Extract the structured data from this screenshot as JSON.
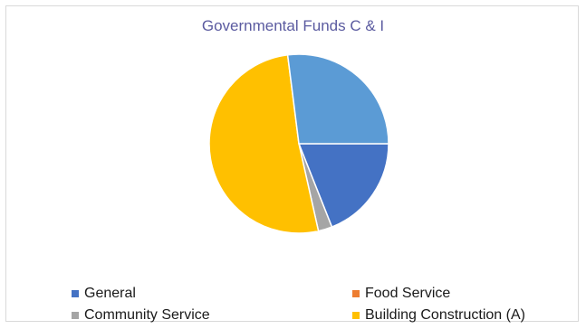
{
  "chart_data": {
    "type": "pie",
    "title": "Governmental Funds C & I",
    "categories": [
      "General",
      "Food Service",
      "Community Service",
      "Building Construction (A)",
      ""
    ],
    "values": [
      19,
      0,
      2.5,
      51.5,
      27
    ],
    "colors": [
      "#4472c4",
      "#ed7d31",
      "#a5a5a5",
      "#ffc000",
      "#5b9bd5"
    ],
    "legend_position": "bottom",
    "legend": [
      "General",
      "Food Service",
      "Community Service",
      "Building Construction (A)"
    ]
  }
}
